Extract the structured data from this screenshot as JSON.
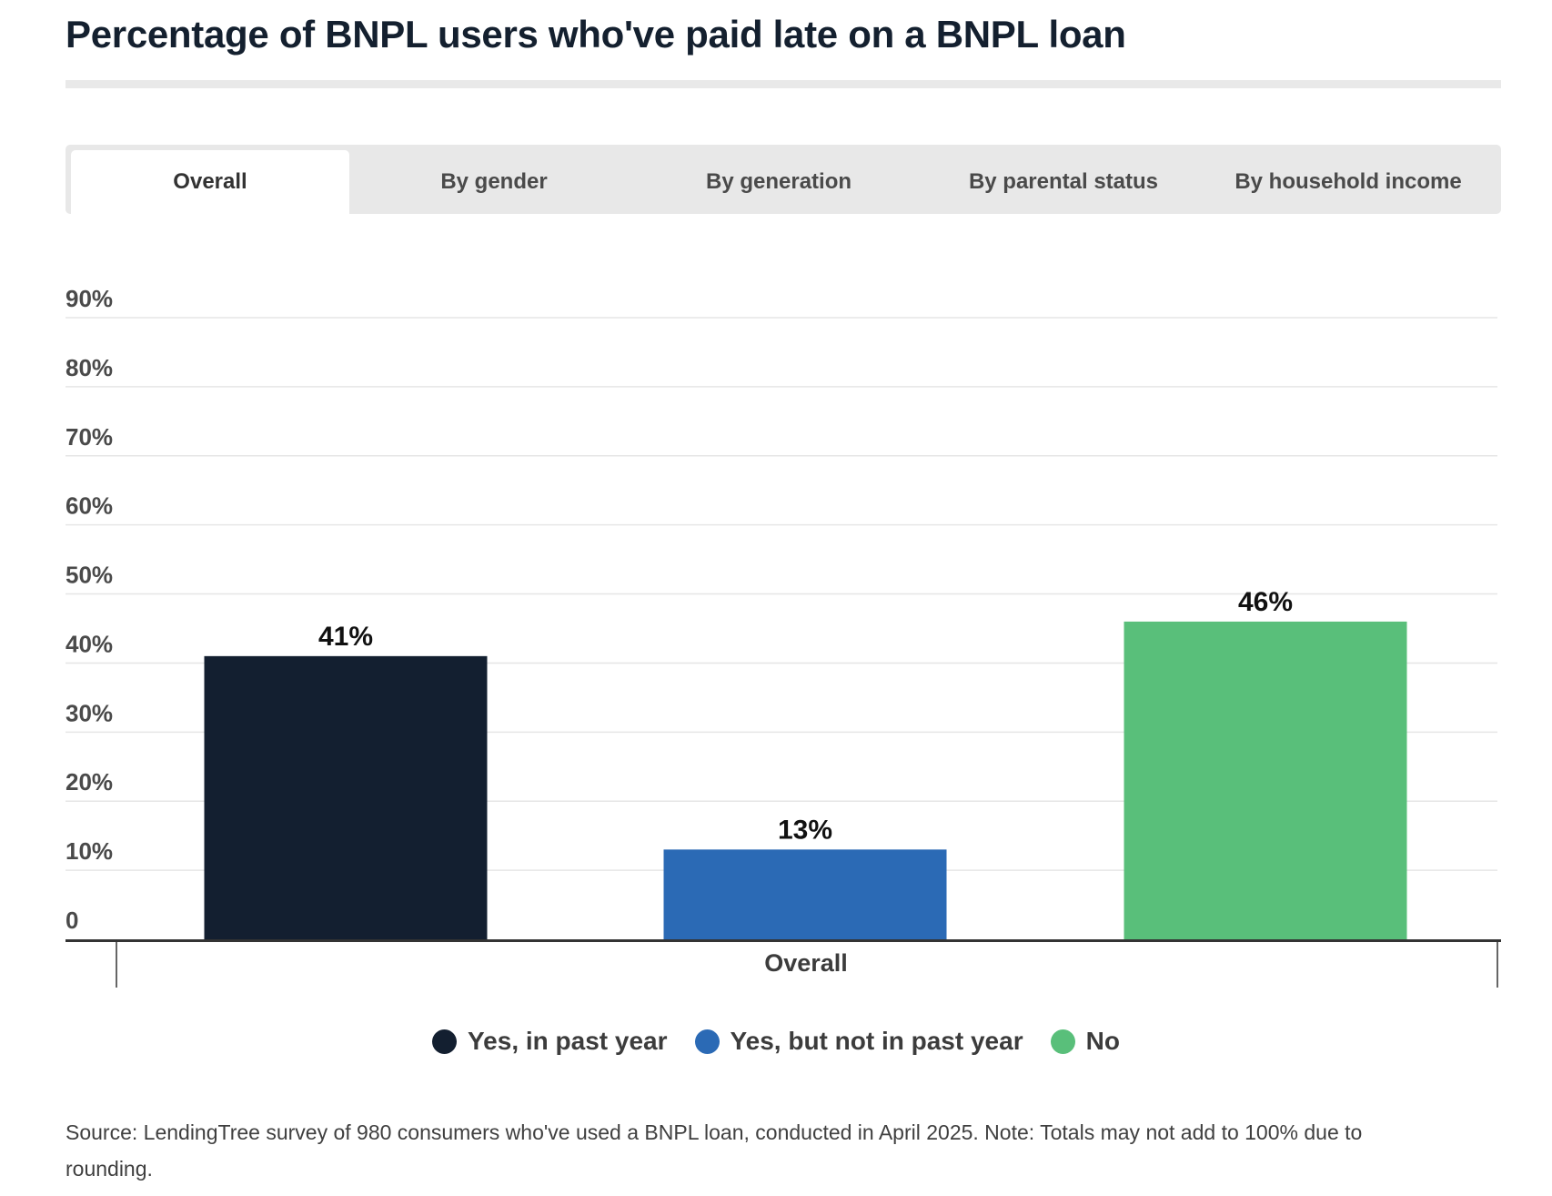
{
  "header": {
    "title": "Percentage of BNPL users who've paid late on a BNPL loan"
  },
  "tabs": [
    {
      "label": "Overall",
      "active": true
    },
    {
      "label": "By gender",
      "active": false
    },
    {
      "label": "By generation",
      "active": false
    },
    {
      "label": "By parental status",
      "active": false
    },
    {
      "label": "By household income",
      "active": false
    }
  ],
  "chart_data": {
    "type": "bar",
    "categories": [
      "Overall"
    ],
    "series": [
      {
        "name": "Yes, in past year",
        "values": [
          41
        ],
        "color": "#131f30",
        "label": "41%"
      },
      {
        "name": "Yes, but not in past year",
        "values": [
          13
        ],
        "color": "#2b6ab5",
        "label": "13%"
      },
      {
        "name": "No",
        "values": [
          46
        ],
        "color": "#59bf7a",
        "label": "46%"
      }
    ],
    "yticks": [
      {
        "value": 0,
        "label": "0"
      },
      {
        "value": 10,
        "label": "10%"
      },
      {
        "value": 20,
        "label": "20%"
      },
      {
        "value": 30,
        "label": "30%"
      },
      {
        "value": 40,
        "label": "40%"
      },
      {
        "value": 50,
        "label": "50%"
      },
      {
        "value": 60,
        "label": "60%"
      },
      {
        "value": 70,
        "label": "70%"
      },
      {
        "value": 80,
        "label": "80%"
      },
      {
        "value": 90,
        "label": "90%"
      }
    ],
    "ylim": [
      0,
      90
    ],
    "grid": true,
    "legend": "bottom-center"
  },
  "footer": {
    "source": "Source: LendingTree survey of 980 consumers who've used a BNPL loan, conducted in April 2025. Note: Totals may not add to 100% due to rounding."
  }
}
